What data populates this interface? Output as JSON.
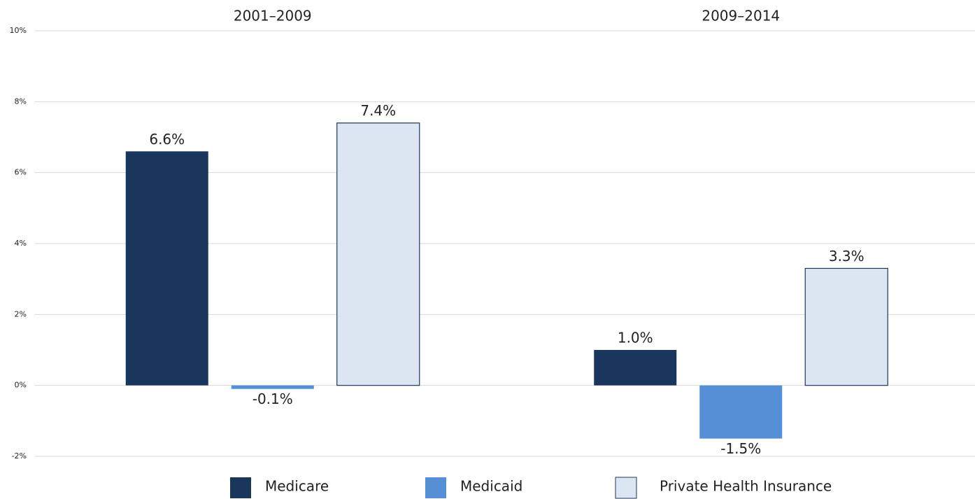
{
  "chart_data": {
    "type": "bar",
    "categories": [
      "2001–2009",
      "2009–2014"
    ],
    "series": [
      {
        "name": "Medicare",
        "color": "#1b365d",
        "values": [
          6.6,
          1.0
        ],
        "value_labels": [
          "6.6%",
          "1.0%"
        ]
      },
      {
        "name": "Medicaid",
        "color": "#5590d6",
        "values": [
          -0.1,
          -1.5
        ],
        "value_labels": [
          "-0.1%",
          "-1.5%"
        ]
      },
      {
        "name": "Private Health Insurance",
        "color": "#dce6f2",
        "values": [
          7.4,
          3.3
        ],
        "value_labels": [
          "7.4%",
          "3.3%"
        ]
      }
    ],
    "ylim": [
      -2,
      10
    ],
    "yticks": [
      {
        "value": -2,
        "label": "-2%"
      },
      {
        "value": 0,
        "label": "0%"
      },
      {
        "value": 2,
        "label": "2%"
      },
      {
        "value": 4,
        "label": "4%"
      },
      {
        "value": 6,
        "label": "6%"
      },
      {
        "value": 8,
        "label": "8%"
      },
      {
        "value": 10,
        "label": "10%"
      }
    ],
    "grid": true,
    "legend": "bottom"
  }
}
